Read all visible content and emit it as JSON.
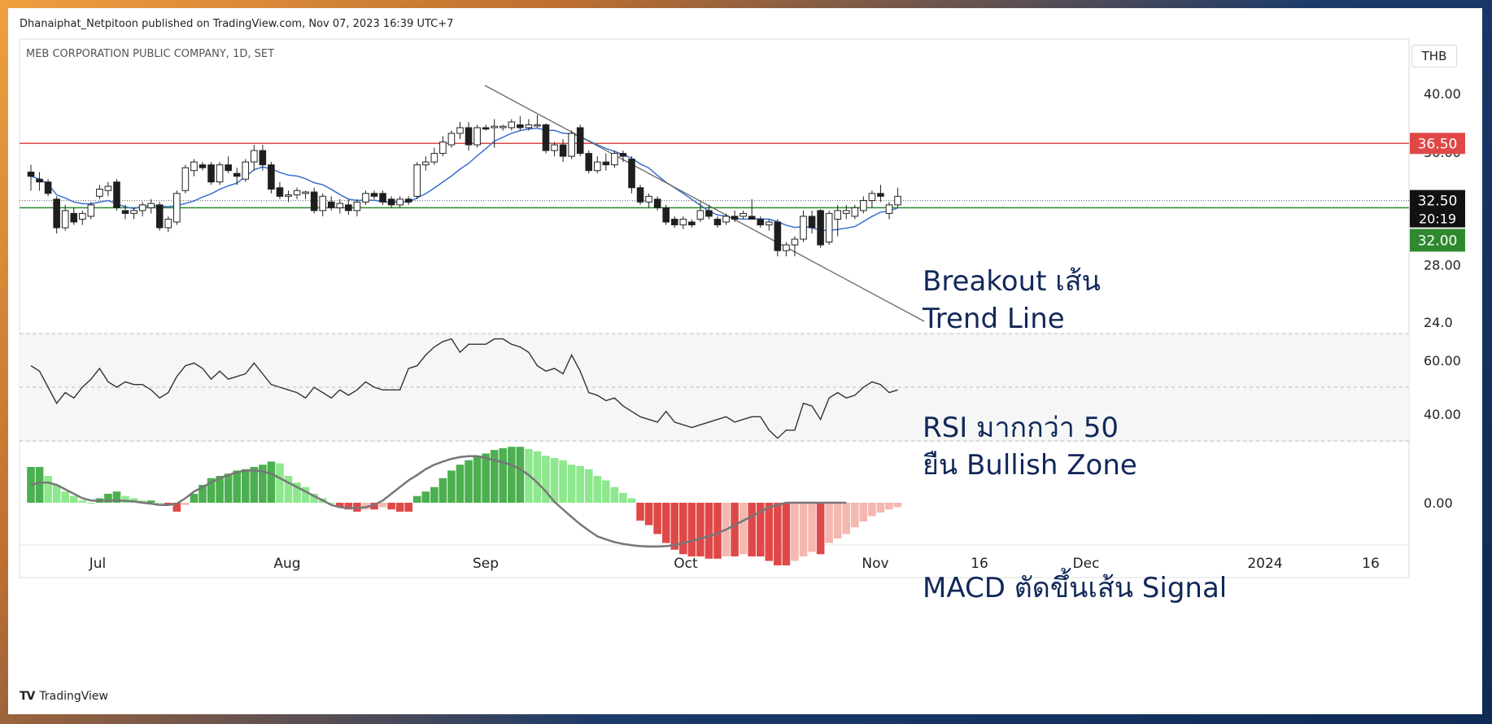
{
  "header": {
    "published": "Dhanaiphat_Netpitoon published on TradingView.com, Nov 07, 2023 16:39 UTC+7",
    "symbol": "MEB CORPORATION PUBLIC COMPANY, 1D, SET",
    "currency": "THB",
    "brand": "TradingView"
  },
  "annotations": {
    "breakout_1": "Breakout เส้น",
    "breakout_2": "Trend Line",
    "rsi_1": "RSI มากกว่า 50",
    "rsi_2": "ยืน Bullish Zone",
    "macd": "MACD ตัดขึ้นเส้น Signal"
  },
  "colors": {
    "up_candle": "#ffffff",
    "down_candle": "#1e1e1e",
    "resistance": "#e04848",
    "support": "#2a8a2a",
    "ma": "#3a6fd0",
    "trendline": "#666666",
    "macd_pos_strong": "#4caf50",
    "macd_pos_weak": "#8ee88e",
    "macd_neg_strong": "#e04848",
    "macd_neg_weak": "#f4b8b0"
  },
  "chart_data": [
    {
      "type": "candlestick",
      "title": "MEB CORPORATION PUBLIC COMPANY, 1D, SET",
      "ylim": [
        23.2,
        43.8
      ],
      "y_ticks": [
        "40.00",
        "28.00",
        "24.0"
      ],
      "x_ticks": [
        "Jul",
        "Aug",
        "Sep",
        "Oct",
        "Nov",
        "16",
        "Dec",
        "2024",
        "16"
      ],
      "price_labels": {
        "resistance": "36.50",
        "last": "32.50",
        "countdown": "20:19",
        "support": "32.00"
      },
      "levels": {
        "resistance": 36.5,
        "support": 32.0,
        "last": 32.5
      },
      "trendline": [
        [
          0,
          0
        ],
        [
          0,
          0
        ]
      ],
      "candles": [
        {
          "o": 34.5,
          "h": 35.0,
          "l": 33.2,
          "c": 34.2
        },
        {
          "o": 34.0,
          "h": 34.5,
          "l": 33.2,
          "c": 33.8
        },
        {
          "o": 33.8,
          "h": 34.0,
          "l": 32.8,
          "c": 33.0
        },
        {
          "o": 32.6,
          "h": 32.8,
          "l": 30.2,
          "c": 30.6
        },
        {
          "o": 30.6,
          "h": 32.2,
          "l": 30.4,
          "c": 31.8
        },
        {
          "o": 31.6,
          "h": 32.0,
          "l": 30.8,
          "c": 31.0
        },
        {
          "o": 31.2,
          "h": 31.8,
          "l": 30.8,
          "c": 31.6
        },
        {
          "o": 31.4,
          "h": 32.4,
          "l": 31.2,
          "c": 32.2
        },
        {
          "o": 32.8,
          "h": 33.6,
          "l": 32.6,
          "c": 33.3
        },
        {
          "o": 33.2,
          "h": 33.8,
          "l": 32.8,
          "c": 33.5
        },
        {
          "o": 33.8,
          "h": 34.0,
          "l": 31.8,
          "c": 32.0
        },
        {
          "o": 31.8,
          "h": 32.2,
          "l": 31.2,
          "c": 31.6
        },
        {
          "o": 31.6,
          "h": 32.0,
          "l": 31.2,
          "c": 31.8
        },
        {
          "o": 31.8,
          "h": 32.4,
          "l": 31.4,
          "c": 32.2
        },
        {
          "o": 32.0,
          "h": 32.6,
          "l": 31.6,
          "c": 32.3
        },
        {
          "o": 32.2,
          "h": 32.4,
          "l": 30.4,
          "c": 30.6
        },
        {
          "o": 30.6,
          "h": 31.4,
          "l": 30.3,
          "c": 31.2
        },
        {
          "o": 31.0,
          "h": 33.2,
          "l": 30.8,
          "c": 33.0
        },
        {
          "o": 33.2,
          "h": 35.0,
          "l": 33.0,
          "c": 34.8
        },
        {
          "o": 34.6,
          "h": 35.4,
          "l": 34.2,
          "c": 35.2
        },
        {
          "o": 35.0,
          "h": 35.2,
          "l": 34.6,
          "c": 34.8
        },
        {
          "o": 35.0,
          "h": 35.2,
          "l": 33.6,
          "c": 33.8
        },
        {
          "o": 33.8,
          "h": 35.2,
          "l": 33.6,
          "c": 35.0
        },
        {
          "o": 35.0,
          "h": 35.6,
          "l": 34.4,
          "c": 34.6
        },
        {
          "o": 34.4,
          "h": 34.8,
          "l": 33.6,
          "c": 34.2
        },
        {
          "o": 34.0,
          "h": 35.4,
          "l": 33.8,
          "c": 35.2
        },
        {
          "o": 35.2,
          "h": 36.4,
          "l": 34.6,
          "c": 36.0
        },
        {
          "o": 36.0,
          "h": 36.4,
          "l": 34.6,
          "c": 35.0
        },
        {
          "o": 35.0,
          "h": 35.2,
          "l": 33.0,
          "c": 33.3
        },
        {
          "o": 33.4,
          "h": 33.8,
          "l": 32.6,
          "c": 32.8
        },
        {
          "o": 32.8,
          "h": 33.2,
          "l": 32.4,
          "c": 32.9
        },
        {
          "o": 32.9,
          "h": 33.4,
          "l": 32.6,
          "c": 33.2
        },
        {
          "o": 33.0,
          "h": 33.2,
          "l": 32.6,
          "c": 33.1
        },
        {
          "o": 33.1,
          "h": 33.4,
          "l": 31.6,
          "c": 31.8
        },
        {
          "o": 31.8,
          "h": 33.0,
          "l": 31.4,
          "c": 32.8
        },
        {
          "o": 32.4,
          "h": 32.8,
          "l": 31.8,
          "c": 32.0
        },
        {
          "o": 32.0,
          "h": 32.6,
          "l": 31.6,
          "c": 32.3
        },
        {
          "o": 32.2,
          "h": 32.6,
          "l": 31.5,
          "c": 31.8
        },
        {
          "o": 31.8,
          "h": 32.6,
          "l": 31.4,
          "c": 32.4
        },
        {
          "o": 32.4,
          "h": 33.2,
          "l": 32.2,
          "c": 33.0
        },
        {
          "o": 33.0,
          "h": 33.2,
          "l": 32.6,
          "c": 32.8
        },
        {
          "o": 33.0,
          "h": 33.2,
          "l": 32.2,
          "c": 32.4
        },
        {
          "o": 32.6,
          "h": 32.8,
          "l": 32.0,
          "c": 32.2
        },
        {
          "o": 32.2,
          "h": 32.8,
          "l": 32.0,
          "c": 32.6
        },
        {
          "o": 32.6,
          "h": 32.8,
          "l": 32.2,
          "c": 32.4
        },
        {
          "o": 32.8,
          "h": 35.2,
          "l": 32.6,
          "c": 35.0
        },
        {
          "o": 35.0,
          "h": 35.6,
          "l": 34.6,
          "c": 35.2
        },
        {
          "o": 35.2,
          "h": 36.2,
          "l": 35.0,
          "c": 35.8
        },
        {
          "o": 35.8,
          "h": 37.0,
          "l": 35.6,
          "c": 36.6
        },
        {
          "o": 36.4,
          "h": 37.4,
          "l": 36.2,
          "c": 37.2
        },
        {
          "o": 37.2,
          "h": 38.0,
          "l": 36.8,
          "c": 37.6
        },
        {
          "o": 37.6,
          "h": 38.0,
          "l": 36.0,
          "c": 36.4
        },
        {
          "o": 36.4,
          "h": 37.8,
          "l": 36.2,
          "c": 37.6
        },
        {
          "o": 37.6,
          "h": 37.8,
          "l": 37.4,
          "c": 37.5
        },
        {
          "o": 37.6,
          "h": 38.2,
          "l": 36.2,
          "c": 37.7
        },
        {
          "o": 37.6,
          "h": 37.8,
          "l": 37.4,
          "c": 37.7
        },
        {
          "o": 37.6,
          "h": 38.2,
          "l": 37.4,
          "c": 38.0
        },
        {
          "o": 37.8,
          "h": 38.4,
          "l": 37.4,
          "c": 37.6
        },
        {
          "o": 37.6,
          "h": 38.2,
          "l": 37.4,
          "c": 37.8
        },
        {
          "o": 37.8,
          "h": 38.5,
          "l": 37.6,
          "c": 37.8
        },
        {
          "o": 37.8,
          "h": 37.9,
          "l": 35.8,
          "c": 36.0
        },
        {
          "o": 36.0,
          "h": 36.6,
          "l": 35.6,
          "c": 36.4
        },
        {
          "o": 36.4,
          "h": 36.8,
          "l": 35.2,
          "c": 35.6
        },
        {
          "o": 35.6,
          "h": 37.4,
          "l": 35.4,
          "c": 37.2
        },
        {
          "o": 37.6,
          "h": 37.8,
          "l": 35.6,
          "c": 35.8
        },
        {
          "o": 35.8,
          "h": 36.0,
          "l": 34.4,
          "c": 34.6
        },
        {
          "o": 34.6,
          "h": 35.6,
          "l": 34.4,
          "c": 35.2
        },
        {
          "o": 35.2,
          "h": 35.8,
          "l": 34.6,
          "c": 35.0
        },
        {
          "o": 35.0,
          "h": 36.0,
          "l": 34.8,
          "c": 35.8
        },
        {
          "o": 35.8,
          "h": 36.0,
          "l": 35.2,
          "c": 35.6
        },
        {
          "o": 35.4,
          "h": 35.6,
          "l": 33.0,
          "c": 33.4
        },
        {
          "o": 33.4,
          "h": 33.6,
          "l": 32.2,
          "c": 32.4
        },
        {
          "o": 32.4,
          "h": 33.0,
          "l": 32.0,
          "c": 32.8
        },
        {
          "o": 32.6,
          "h": 32.8,
          "l": 31.8,
          "c": 32.0
        },
        {
          "o": 32.0,
          "h": 32.2,
          "l": 30.8,
          "c": 31.0
        },
        {
          "o": 31.2,
          "h": 31.4,
          "l": 30.6,
          "c": 30.8
        },
        {
          "o": 30.8,
          "h": 31.4,
          "l": 30.5,
          "c": 31.2
        },
        {
          "o": 31.0,
          "h": 31.2,
          "l": 30.6,
          "c": 30.8
        },
        {
          "o": 31.2,
          "h": 32.4,
          "l": 31.0,
          "c": 31.8
        },
        {
          "o": 31.8,
          "h": 32.2,
          "l": 31.2,
          "c": 31.4
        },
        {
          "o": 31.2,
          "h": 31.4,
          "l": 30.6,
          "c": 30.8
        },
        {
          "o": 31.0,
          "h": 31.6,
          "l": 30.8,
          "c": 31.4
        },
        {
          "o": 31.4,
          "h": 31.8,
          "l": 31.0,
          "c": 31.2
        },
        {
          "o": 31.4,
          "h": 31.8,
          "l": 31.2,
          "c": 31.6
        },
        {
          "o": 31.4,
          "h": 32.6,
          "l": 31.2,
          "c": 31.2
        },
        {
          "o": 31.2,
          "h": 31.4,
          "l": 30.6,
          "c": 30.8
        },
        {
          "o": 30.8,
          "h": 31.2,
          "l": 30.4,
          "c": 31.0
        },
        {
          "o": 31.0,
          "h": 31.2,
          "l": 28.6,
          "c": 29.0
        },
        {
          "o": 29.0,
          "h": 29.6,
          "l": 28.6,
          "c": 29.4
        },
        {
          "o": 29.4,
          "h": 30.0,
          "l": 28.6,
          "c": 29.8
        },
        {
          "o": 29.8,
          "h": 31.8,
          "l": 29.6,
          "c": 31.4
        },
        {
          "o": 31.4,
          "h": 31.8,
          "l": 30.2,
          "c": 30.6
        },
        {
          "o": 31.8,
          "h": 31.9,
          "l": 29.2,
          "c": 29.4
        },
        {
          "o": 29.6,
          "h": 31.8,
          "l": 29.4,
          "c": 31.6
        },
        {
          "o": 31.2,
          "h": 32.2,
          "l": 30.0,
          "c": 31.8
        },
        {
          "o": 31.6,
          "h": 32.2,
          "l": 31.2,
          "c": 31.8
        },
        {
          "o": 31.4,
          "h": 32.2,
          "l": 31.2,
          "c": 32.0
        },
        {
          "o": 31.8,
          "h": 32.8,
          "l": 31.6,
          "c": 32.5
        },
        {
          "o": 32.5,
          "h": 33.2,
          "l": 32.0,
          "c": 33.0
        },
        {
          "o": 33.0,
          "h": 33.6,
          "l": 32.4,
          "c": 32.8
        },
        {
          "o": 31.6,
          "h": 32.4,
          "l": 31.2,
          "c": 32.2
        },
        {
          "o": 32.2,
          "h": 33.4,
          "l": 32.0,
          "c": 32.8
        }
      ]
    },
    {
      "type": "line",
      "title": "RSI",
      "ylim": [
        30,
        70
      ],
      "y_ticks": [
        "60.00",
        "40.00"
      ],
      "values": [
        58,
        56,
        50,
        44,
        48,
        46,
        50,
        53,
        57,
        52,
        50,
        52,
        51,
        51,
        49,
        46,
        48,
        54,
        58,
        59,
        57,
        53,
        56,
        53,
        54,
        55,
        59,
        55,
        51,
        50,
        49,
        48,
        46,
        50,
        48,
        46,
        49,
        47,
        49,
        52,
        50,
        49,
        49,
        49,
        57,
        58,
        62,
        65,
        67,
        68,
        63,
        66,
        66,
        66,
        68,
        68,
        66,
        65,
        63,
        58,
        56,
        57,
        55,
        62,
        56,
        48,
        47,
        45,
        46,
        43,
        41,
        39,
        38,
        37,
        41,
        37,
        36,
        35,
        36,
        37,
        38,
        39,
        37,
        38,
        39,
        39,
        34,
        31,
        34,
        34,
        44,
        43,
        38,
        46,
        48,
        46,
        47,
        50,
        52,
        51,
        48,
        49
      ]
    },
    {
      "type": "bar",
      "title": "MACD",
      "y_ticks": [
        "0.00"
      ],
      "histogram": [
        0.8,
        0.8,
        0.6,
        0.4,
        0.25,
        0.15,
        0.05,
        0.0,
        0.1,
        0.2,
        0.25,
        0.15,
        0.1,
        0.05,
        0.05,
        0.0,
        -0.05,
        -0.2,
        -0.05,
        0.2,
        0.4,
        0.55,
        0.6,
        0.65,
        0.72,
        0.75,
        0.8,
        0.85,
        0.92,
        0.88,
        0.6,
        0.45,
        0.35,
        0.2,
        0.1,
        0.0,
        -0.1,
        -0.15,
        -0.2,
        -0.15,
        -0.15,
        -0.1,
        -0.15,
        -0.2,
        -0.2,
        0.15,
        0.25,
        0.35,
        0.55,
        0.72,
        0.85,
        0.95,
        1.05,
        1.1,
        1.18,
        1.22,
        1.25,
        1.25,
        1.2,
        1.15,
        1.05,
        1.0,
        0.95,
        0.85,
        0.82,
        0.75,
        0.6,
        0.5,
        0.35,
        0.22,
        0.1,
        -0.4,
        -0.5,
        -0.7,
        -0.9,
        -1.05,
        -1.15,
        -1.2,
        -1.2,
        -1.25,
        -1.25,
        -1.2,
        -1.2,
        -1.15,
        -1.2,
        -1.2,
        -1.3,
        -1.4,
        -1.4,
        -1.3,
        -1.2,
        -1.1,
        -1.15,
        -0.9,
        -0.8,
        -0.7,
        -0.55,
        -0.42,
        -0.3,
        -0.22,
        -0.15,
        -0.1
      ],
      "signal": [
        0.4,
        0.45,
        0.45,
        0.4,
        0.3,
        0.2,
        0.1,
        0.05,
        0.04,
        0.05,
        0.05,
        0.04,
        0.03,
        0.0,
        -0.02,
        -0.05,
        -0.05,
        -0.02,
        0.1,
        0.25,
        0.35,
        0.45,
        0.55,
        0.62,
        0.68,
        0.72,
        0.72,
        0.7,
        0.65,
        0.55,
        0.45,
        0.35,
        0.25,
        0.15,
        0.05,
        -0.05,
        -0.1,
        -0.12,
        -0.12,
        -0.1,
        -0.05,
        0.05,
        0.2,
        0.35,
        0.5,
        0.62,
        0.75,
        0.85,
        0.92,
        0.98,
        1.02,
        1.04,
        1.04,
        1.0,
        0.95,
        0.9,
        0.85,
        0.75,
        0.62,
        0.45,
        0.25,
        0.02,
        -0.15,
        -0.32,
        -0.48,
        -0.62,
        -0.75,
        -0.82,
        -0.88,
        -0.92,
        -0.95,
        -0.97,
        -0.98,
        -0.98,
        -0.97,
        -0.95,
        -0.9,
        -0.85,
        -0.8,
        -0.75,
        -0.68,
        -0.6,
        -0.5,
        -0.4,
        -0.3,
        -0.2,
        -0.1,
        -0.05,
        0,
        0,
        0,
        0,
        0,
        0,
        0,
        0,
        0,
        0,
        0,
        0,
        0,
        0,
        0
      ]
    }
  ]
}
